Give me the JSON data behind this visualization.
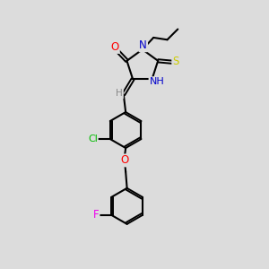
{
  "background_color": "#dcdcdc",
  "atom_colors": {
    "O": "#ff0000",
    "N": "#0000cc",
    "S": "#cccc00",
    "Cl": "#00bb00",
    "F": "#ee00ee",
    "H": "#888888",
    "C": "#000000"
  }
}
